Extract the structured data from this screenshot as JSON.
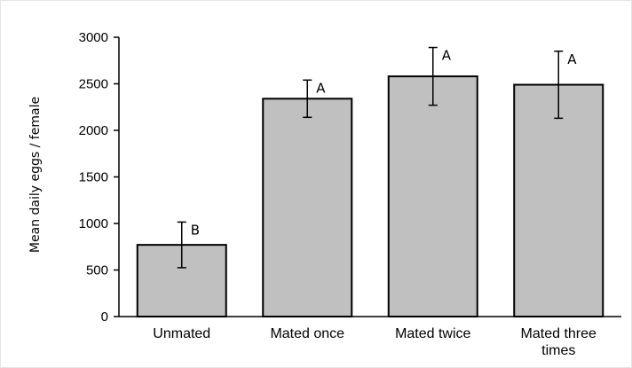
{
  "chart_data": {
    "type": "bar",
    "title": "",
    "xlabel": "",
    "ylabel": "Mean daily eggs / female",
    "ylim": [
      0,
      3000
    ],
    "yticks": [
      0,
      500,
      1000,
      1500,
      2000,
      2500,
      3000
    ],
    "grid": false,
    "categories": [
      "Unmated",
      "Mated once",
      "Mated twice",
      "Mated three\ntimes"
    ],
    "values": [
      770,
      2340,
      2580,
      2490
    ],
    "error": [
      245,
      200,
      310,
      360
    ],
    "significance_labels": [
      "B",
      "A",
      "A",
      "A"
    ],
    "colors": {
      "bar_fill": "#c0c0c0",
      "bar_stroke": "#000000"
    }
  }
}
